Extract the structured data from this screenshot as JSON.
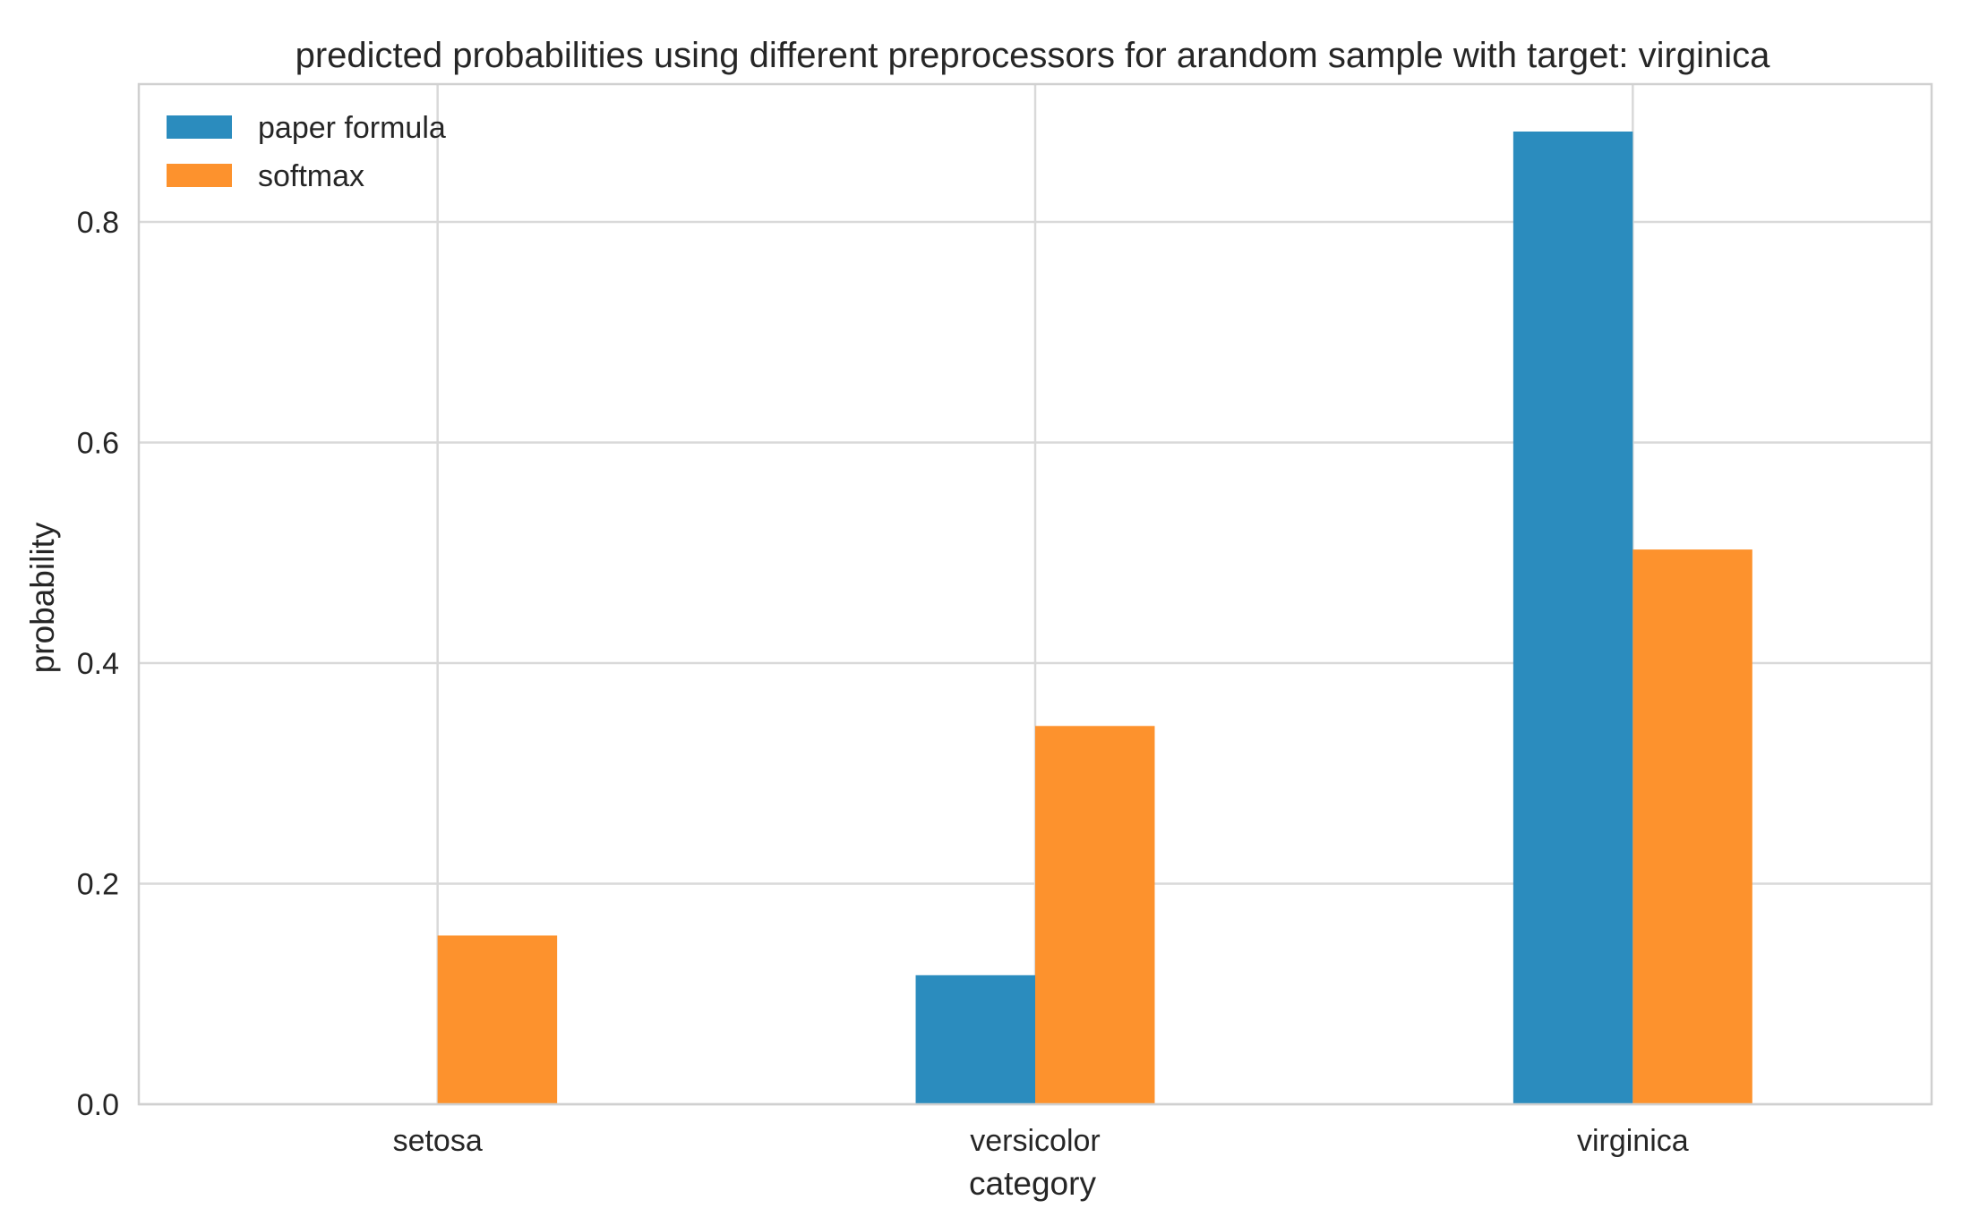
{
  "chart_data": {
    "type": "bar",
    "title": "predicted probabilities using different preprocessors for arandom sample with target: virginica",
    "xlabel": "category",
    "ylabel": "probability",
    "categories": [
      "setosa",
      "versicolor",
      "virginica"
    ],
    "series": [
      {
        "name": "paper formula",
        "values": [
          0.0,
          0.117,
          0.882
        ],
        "color": "#2b8cbe"
      },
      {
        "name": "softmax",
        "values": [
          0.153,
          0.343,
          0.503
        ],
        "color": "#fd922d"
      }
    ],
    "ylim": [
      0,
      0.925
    ],
    "yticks": [
      0.0,
      0.2,
      0.4,
      0.6,
      0.8
    ],
    "ytick_labels": [
      "0.0",
      "0.2",
      "0.4",
      "0.6",
      "0.8"
    ],
    "grid": true,
    "legend_position": "top-left"
  },
  "colors": {
    "grid": "#d9d9d9",
    "frame": "#d0d0d0",
    "text": "#262626",
    "background": "#ffffff"
  }
}
